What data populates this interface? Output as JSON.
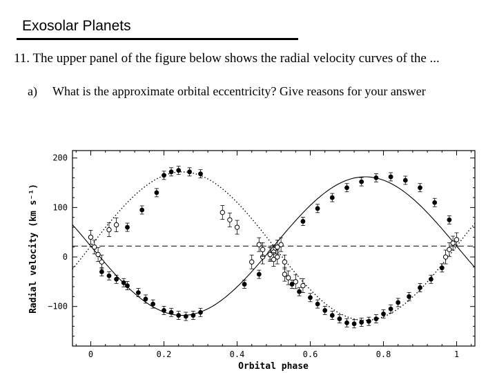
{
  "slide": {
    "title": "Exosolar Planets",
    "question": "11. The upper panel of the figure below shows the radial velocity curves of the ...",
    "sub_letter": "a)",
    "sub_text": "What is the approximate orbital eccentricity?  Give reasons for your answer"
  },
  "chart_data": {
    "type": "scatter",
    "xlabel": "Orbital phase",
    "ylabel": "Radial velocity  (km s⁻¹)",
    "xlim": [
      -0.05,
      1.05
    ],
    "ylim": [
      -180,
      215
    ],
    "xticks": [
      0,
      0.2,
      0.4,
      0.6,
      0.8,
      1
    ],
    "xtick_labels": [
      "0",
      "0.2",
      "0.4",
      "0.6",
      "0.8",
      "1"
    ],
    "yticks": [
      -100,
      0,
      100,
      200
    ],
    "ytick_labels": [
      "−100",
      "0",
      "100",
      "200"
    ],
    "systemic_velocity": 22,
    "grid": false,
    "legend": "none",
    "series": [
      {
        "marker": "filled",
        "x": [
          0.03,
          0.05,
          0.07,
          0.09,
          0.1,
          0.13,
          0.15,
          0.17,
          0.2,
          0.22,
          0.24,
          0.26,
          0.28,
          0.3,
          0.42,
          0.46,
          0.55,
          0.57,
          0.6,
          0.62,
          0.64,
          0.66,
          0.68,
          0.7,
          0.72,
          0.74,
          0.76,
          0.78,
          0.8,
          0.82,
          0.84,
          0.87,
          0.9,
          0.93,
          0.96,
          0.1,
          0.14,
          0.18,
          0.2,
          0.22,
          0.24,
          0.27,
          0.3,
          0.58,
          0.62,
          0.66,
          0.7,
          0.74,
          0.78,
          0.82,
          0.86,
          0.9,
          0.94,
          0.98
        ],
        "y": [
          -30,
          -38,
          -45,
          -52,
          -58,
          -72,
          -85,
          -95,
          -108,
          -112,
          -118,
          -120,
          -118,
          -112,
          -55,
          -35,
          -55,
          -70,
          -82,
          -95,
          -108,
          -118,
          -125,
          -133,
          -135,
          -132,
          -130,
          -125,
          -115,
          -105,
          -92,
          -80,
          -62,
          -45,
          -22,
          60,
          95,
          130,
          165,
          172,
          175,
          172,
          168,
          72,
          98,
          120,
          140,
          152,
          160,
          162,
          155,
          140,
          110,
          75
        ]
      },
      {
        "marker": "open",
        "x": [
          0.0,
          0.01,
          0.02,
          0.03,
          0.05,
          0.07,
          0.36,
          0.38,
          0.4,
          0.44,
          0.47,
          0.49,
          0.5,
          0.51,
          0.52,
          0.53,
          0.97,
          0.98,
          0.99,
          1.0,
          0.46,
          0.47,
          0.49,
          0.5,
          0.51,
          0.53,
          0.54,
          0.56,
          0.58
        ],
        "y": [
          40,
          20,
          5,
          -10,
          55,
          65,
          90,
          75,
          60,
          -10,
          0,
          8,
          10,
          20,
          25,
          -10,
          0,
          15,
          28,
          35,
          25,
          15,
          5,
          -5,
          0,
          -35,
          -42,
          -50,
          -58
        ]
      }
    ],
    "curves": [
      {
        "name": "",
        "style": "solid",
        "note": "fitted orbit, primary"
      },
      {
        "name": "",
        "style": "dotted",
        "note": "fitted orbit, secondary"
      }
    ]
  }
}
